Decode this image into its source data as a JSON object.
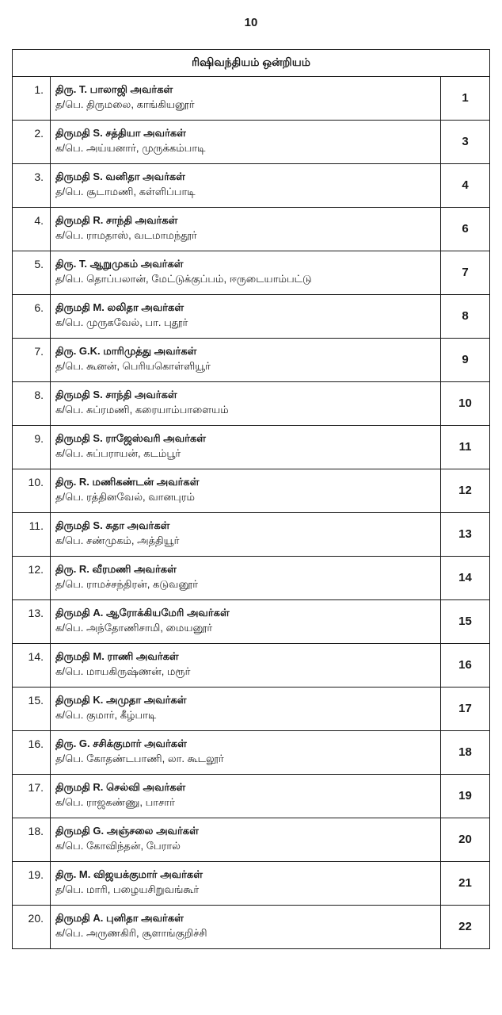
{
  "page_number": "10",
  "table_header": "ரிஷிவந்தியம் ஒன்றியம்",
  "columns": {
    "sno_width": 48,
    "num_width": 62
  },
  "rows": [
    {
      "sno": "1.",
      "name": "திரு. T. பாலாஜி அவர்கள்",
      "addr": "த/பெ. திருமலை, காங்கியனூர்",
      "num": "1"
    },
    {
      "sno": "2.",
      "name": "திருமதி S. சத்தியா அவர்கள்",
      "addr": "க/பெ. அய்யனார், முருக்கம்பாடி",
      "num": "3"
    },
    {
      "sno": "3.",
      "name": "திருமதி S. வனிதா அவர்கள்",
      "addr": "த/பெ. சூடாமணி, கள்ளிப்பாடி",
      "num": "4"
    },
    {
      "sno": "4.",
      "name": "திருமதி R. சாந்தி அவர்கள்",
      "addr": "க/பெ. ராமதாஸ், வடமாமந்தூர்",
      "num": "6"
    },
    {
      "sno": "5.",
      "name": "திரு. T. ஆறுமுகம் அவர்கள்",
      "addr": "த/பெ. தொப்பலான், மேட்டுக்குப்பம், ஈருடையாம்பட்டு",
      "num": "7"
    },
    {
      "sno": "6.",
      "name": "திருமதி M. லலிதா அவர்கள்",
      "addr": "க/பெ. முருகவேல், பா. புதூர்",
      "num": "8"
    },
    {
      "sno": "7.",
      "name": "திரு. G.K. மாரிமுத்து அவர்கள்",
      "addr": "த/பெ. கூனன், பெரியகொள்ளியூர்",
      "num": "9"
    },
    {
      "sno": "8.",
      "name": "திருமதி S. சாந்தி அவர்கள்",
      "addr": "க/பெ. சுப்ரமணி, கரையாம்பாளையம்",
      "num": "10"
    },
    {
      "sno": "9.",
      "name": "திருமதி S. ராஜேஸ்வரி அவர்கள்",
      "addr": "க/பெ. சுப்பராயன், கடம்பூர்",
      "num": "11"
    },
    {
      "sno": "10.",
      "name": "திரு. R. மணிகண்டன் அவர்கள்",
      "addr": "த/பெ. ரத்தினவேல், வானபுரம்",
      "num": "12"
    },
    {
      "sno": "11.",
      "name": "திருமதி S. சுதா அவர்கள்",
      "addr": "க/பெ. சண்முகம், அத்தியூர்",
      "num": "13"
    },
    {
      "sno": "12.",
      "name": "திரு. R. வீரமணி அவர்கள்",
      "addr": "த/பெ. ராமச்சந்திரன், கடுவனூர்",
      "num": "14"
    },
    {
      "sno": "13.",
      "name": "திருமதி A. ஆரோக்கியமேரி அவர்கள்",
      "addr": "க/பெ. அந்தோணிசாமி, மையனூர்",
      "num": "15"
    },
    {
      "sno": "14.",
      "name": "திருமதி M. ராணி அவர்கள்",
      "addr": "க/பெ. மாயகிருஷ்ணன், மரூர்",
      "num": "16"
    },
    {
      "sno": "15.",
      "name": "திருமதி K. அமுதா அவர்கள்",
      "addr": "க/பெ. குமார், கீழ்பாடி",
      "num": "17"
    },
    {
      "sno": "16.",
      "name": "திரு. G. சசிக்குமார் அவர்கள்",
      "addr": "த/பெ. கோதண்டபாணி, லா. கூடலூர்",
      "num": "18"
    },
    {
      "sno": "17.",
      "name": "திருமதி R. செல்வி அவர்கள்",
      "addr": "க/பெ. ராஜகண்ணு, பாசார்",
      "num": "19"
    },
    {
      "sno": "18.",
      "name": "திருமதி G. அஞ்சலை அவர்கள்",
      "addr": "க/பெ. கோவிந்தன், பேரால்",
      "num": "20"
    },
    {
      "sno": "19.",
      "name": "திரு. M. விஜயக்குமார் அவர்கள்",
      "addr": "த/பெ. மாரி, பழையசிறுவங்கூர்",
      "num": "21"
    },
    {
      "sno": "20.",
      "name": "திருமதி A. புனிதா அவர்கள்",
      "addr": "க/பெ. அருணகிரி, சூளாங்குறிச்சி",
      "num": "22"
    }
  ]
}
